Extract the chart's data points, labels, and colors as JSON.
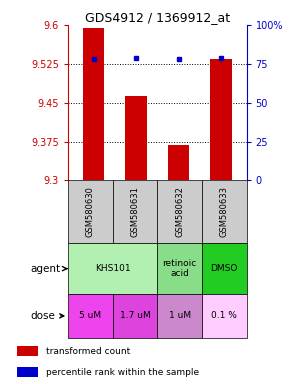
{
  "title": "GDS4912 / 1369912_at",
  "samples": [
    "GSM580630",
    "GSM580631",
    "GSM580632",
    "GSM580633"
  ],
  "bar_values": [
    9.595,
    9.463,
    9.368,
    9.535
  ],
  "percentile_values": [
    78,
    79,
    78,
    79
  ],
  "y_min": 9.3,
  "y_max": 9.6,
  "y_ticks": [
    9.3,
    9.375,
    9.45,
    9.525,
    9.6
  ],
  "y_tick_labels": [
    "9.3",
    "9.375",
    "9.45",
    "9.525",
    "9.6"
  ],
  "right_y_ticks": [
    0,
    25,
    50,
    75,
    100
  ],
  "right_y_tick_labels": [
    "0",
    "25",
    "50",
    "75",
    "100%"
  ],
  "bar_color": "#cc0000",
  "percentile_color": "#0000cc",
  "agent_spans": [
    [
      0,
      2,
      "KHS101",
      "#b2f0b2"
    ],
    [
      2,
      3,
      "retinoic\nacid",
      "#88dd88"
    ],
    [
      3,
      4,
      "DMSO",
      "#22cc22"
    ]
  ],
  "dose_labels": [
    "5 uM",
    "1.7 uM",
    "1 uM",
    "0.1 %"
  ],
  "dose_colors": [
    "#ee44ee",
    "#dd44dd",
    "#cc88cc",
    "#ffccff"
  ],
  "sample_bg_color": "#cccccc",
  "legend_bar_color": "#cc0000",
  "legend_pct_color": "#0000cc"
}
